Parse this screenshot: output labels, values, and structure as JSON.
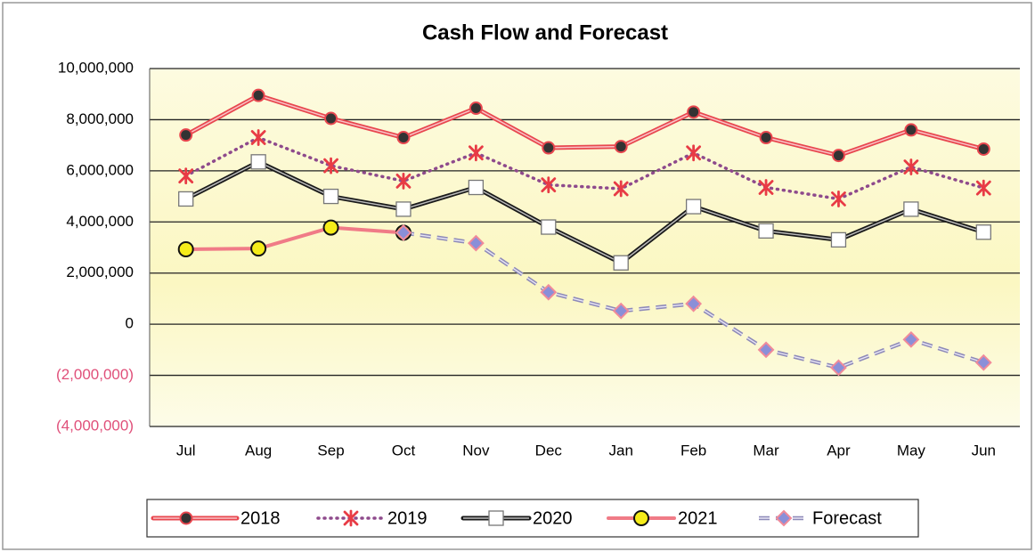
{
  "chart_data": {
    "type": "line",
    "title": "Cash Flow and Forecast",
    "categories": [
      "Jul",
      "Aug",
      "Sep",
      "Oct",
      "Nov",
      "Dec",
      "Jan",
      "Feb",
      "Mar",
      "Apr",
      "May",
      "Jun"
    ],
    "ylim": [
      -4000000,
      10000000
    ],
    "yticks": [
      {
        "value": -4000000,
        "label": "(4,000,000)"
      },
      {
        "value": -2000000,
        "label": "(2,000,000)"
      },
      0,
      {
        "value": 2000000,
        "label": "2,000,000"
      },
      {
        "value": 4000000,
        "label": "4,000,000"
      },
      {
        "value": 6000000,
        "label": "6,000,000"
      },
      {
        "value": 8000000,
        "label": "8,000,000"
      },
      {
        "value": 10000000,
        "label": "10,000,000"
      }
    ],
    "grid": true,
    "legend": "bottom",
    "series": [
      {
        "name": "2018",
        "color": "#e8474f",
        "marker": "circle",
        "line_style": "double",
        "values": [
          7400000,
          8950000,
          8050000,
          7300000,
          8450000,
          6900000,
          6950000,
          8300000,
          7300000,
          6600000,
          7600000,
          6850000
        ]
      },
      {
        "name": "2019",
        "color": "#8e4a8c",
        "marker": "asterisk",
        "line_style": "dotted",
        "values": [
          5800000,
          7300000,
          6200000,
          5600000,
          6700000,
          5450000,
          5300000,
          6700000,
          5350000,
          4900000,
          6150000,
          5330000
        ]
      },
      {
        "name": "2020",
        "color": "#1a1a1a",
        "marker": "square",
        "line_style": "double",
        "values": [
          4900000,
          6350000,
          5000000,
          4500000,
          5350000,
          3800000,
          2400000,
          4600000,
          3650000,
          3300000,
          4500000,
          3600000
        ]
      },
      {
        "name": "2021",
        "color": "#f07b87",
        "marker": "circle-yellow",
        "line_style": "solid",
        "values": [
          2930000,
          2960000,
          3780000,
          3580000,
          null,
          null,
          null,
          null,
          null,
          null,
          null,
          null
        ]
      },
      {
        "name": "Forecast",
        "color": "#8e8ab8",
        "marker": "diamond",
        "line_style": "dashed",
        "values": [
          null,
          null,
          null,
          3580000,
          3170000,
          1250000,
          520000,
          800000,
          -1000000,
          -1700000,
          -600000,
          -1500000
        ]
      }
    ]
  }
}
